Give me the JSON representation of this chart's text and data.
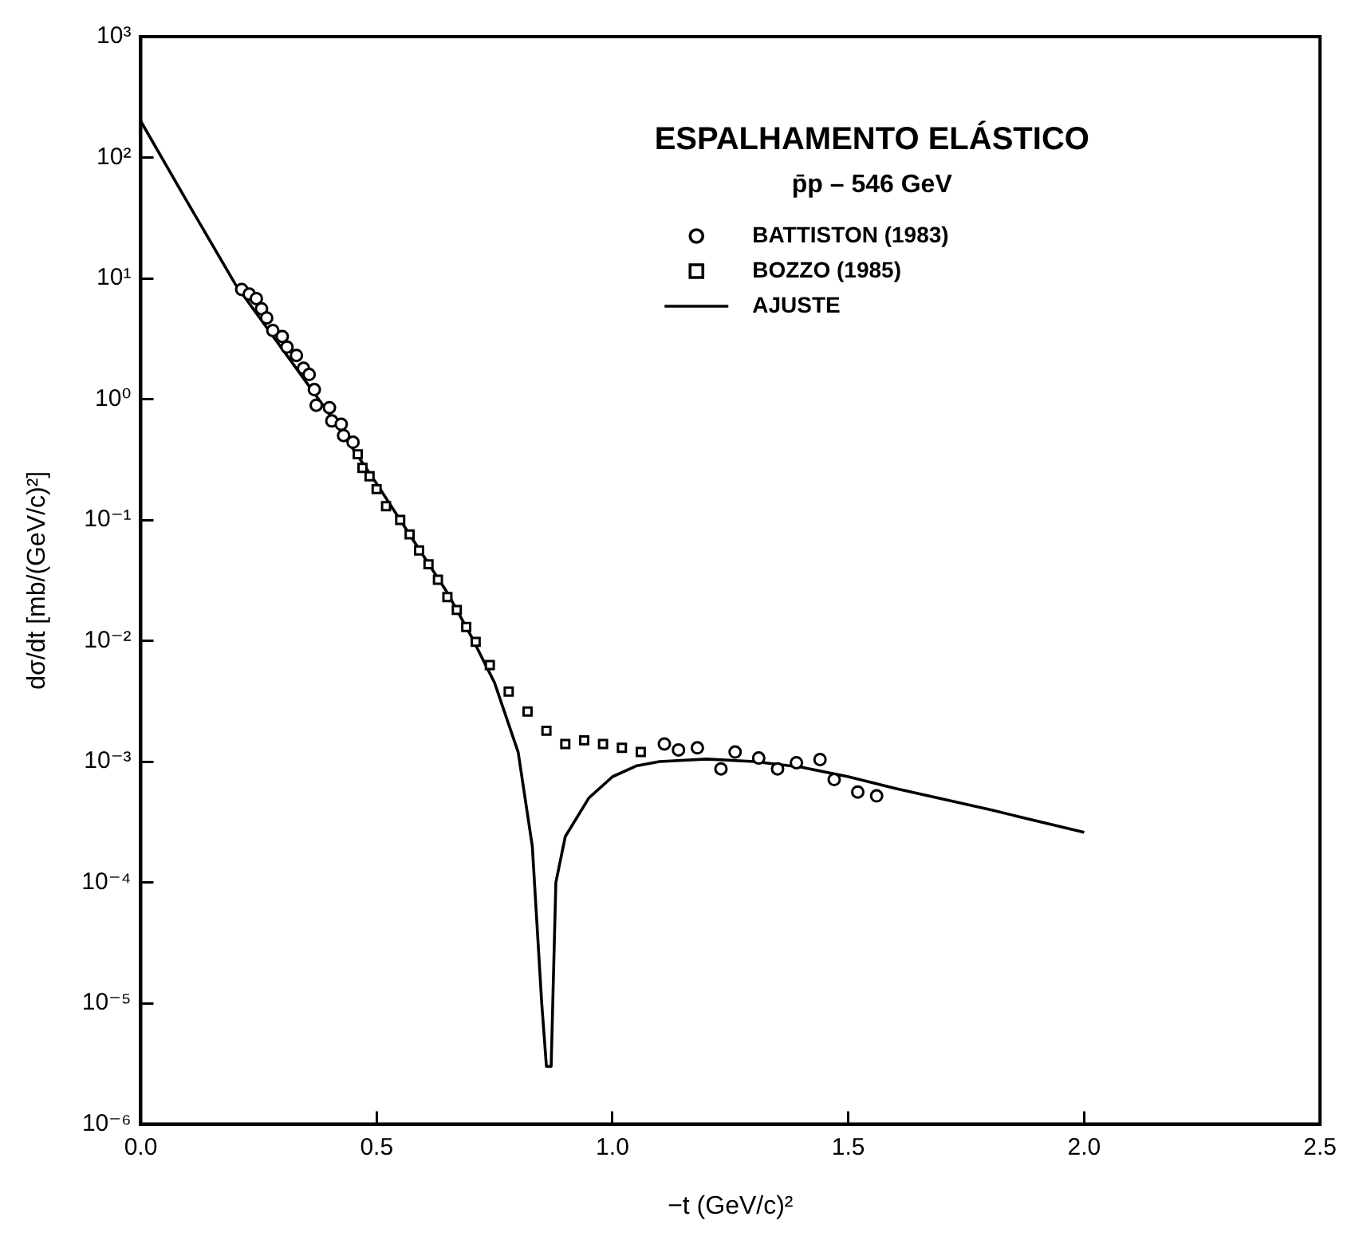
{
  "chart_data": {
    "type": "scatter",
    "title": "ESPALHAMENTO ELÁSTICO",
    "subtitle": "p̄p – 546 GeV",
    "xlabel": "−t (GeV/c)²",
    "ylabel": "dσ/dt [mb/(GeV/c)²]",
    "xlim": [
      0,
      2.5
    ],
    "xticks": [
      {
        "value": 0,
        "label": "0.0"
      },
      0.5,
      {
        "value": 1,
        "label": "1.0"
      },
      1.5,
      {
        "value": 2,
        "label": "2.0"
      },
      2.5
    ],
    "ylim": [
      1e-06,
      1000
    ],
    "yticks": [
      {
        "value": 1e-06,
        "label": "10⁻⁶"
      },
      {
        "value": 1e-05,
        "label": "10⁻⁵"
      },
      {
        "value": 0.0001,
        "label": "10⁻⁴"
      },
      {
        "value": 0.001,
        "label": "10⁻³"
      },
      {
        "value": 0.01,
        "label": "10⁻²"
      },
      {
        "value": 0.1,
        "label": "10⁻¹"
      },
      {
        "value": 1,
        "label": "10⁰"
      },
      {
        "value": 10,
        "label": "10¹"
      },
      {
        "value": 100,
        "label": "10²"
      },
      {
        "value": 1000,
        "label": "10³"
      }
    ],
    "log": "y",
    "grid": false,
    "legend": "top right",
    "series": [
      {
        "name": "BATTISTON (1983)",
        "type": "scatter",
        "marker": "circle",
        "color": "#000000",
        "x": [
          0.214,
          0.23,
          0.245,
          0.256,
          0.267,
          0.28,
          0.3,
          0.31,
          0.33,
          0.345,
          0.357,
          0.368,
          0.372,
          0.4,
          0.405,
          0.425,
          0.43,
          0.45,
          1.11,
          1.14,
          1.18,
          1.23,
          1.26,
          1.31,
          1.35,
          1.39,
          1.44,
          1.47,
          1.52,
          1.56
        ],
        "values": [
          8.1,
          7.4,
          6.8,
          5.6,
          4.7,
          3.7,
          3.3,
          2.7,
          2.3,
          1.8,
          1.6,
          1.2,
          0.89,
          0.85,
          0.66,
          0.62,
          0.5,
          0.44,
          0.0014,
          0.00125,
          0.0013,
          0.00087,
          0.0012,
          0.00107,
          0.00087,
          0.00098,
          0.00104,
          0.00071,
          0.00056,
          0.00052
        ]
      },
      {
        "name": "BOZZO (1985)",
        "type": "scatter",
        "marker": "square",
        "color": "#000000",
        "x": [
          0.46,
          0.47,
          0.485,
          0.5,
          0.52,
          0.55,
          0.57,
          0.59,
          0.61,
          0.63,
          0.65,
          0.67,
          0.69,
          0.71,
          0.74,
          0.78,
          0.82,
          0.86,
          0.9,
          0.94,
          0.98,
          1.02,
          1.06
        ],
        "values": [
          0.35,
          0.27,
          0.23,
          0.18,
          0.13,
          0.1,
          0.076,
          0.056,
          0.043,
          0.032,
          0.023,
          0.018,
          0.013,
          0.0098,
          0.0063,
          0.0038,
          0.0026,
          0.0018,
          0.0014,
          0.0015,
          0.0014,
          0.0013,
          0.0012
        ]
      },
      {
        "name": "AJUSTE",
        "type": "line",
        "marker": "none",
        "line_style": "solid",
        "color": "#000000",
        "x": [
          0,
          0.1,
          0.2,
          0.3,
          0.4,
          0.5,
          0.6,
          0.65,
          0.7,
          0.75,
          0.8,
          0.83,
          0.85,
          0.86,
          0.87,
          0.88,
          0.9,
          0.95,
          1,
          1.05,
          1.1,
          1.2,
          1.3,
          1.4,
          1.5,
          1.6,
          1.8,
          2
        ],
        "values": [
          200,
          42,
          9,
          2.6,
          0.75,
          0.2,
          0.05,
          0.025,
          0.011,
          0.0045,
          0.0012,
          0.0002,
          1e-05,
          3e-06,
          3e-06,
          0.0001,
          0.00024,
          0.0005,
          0.00075,
          0.00092,
          0.001,
          0.00105,
          0.001,
          0.0009,
          0.00075,
          0.0006,
          0.0004,
          0.00026
        ]
      }
    ]
  }
}
